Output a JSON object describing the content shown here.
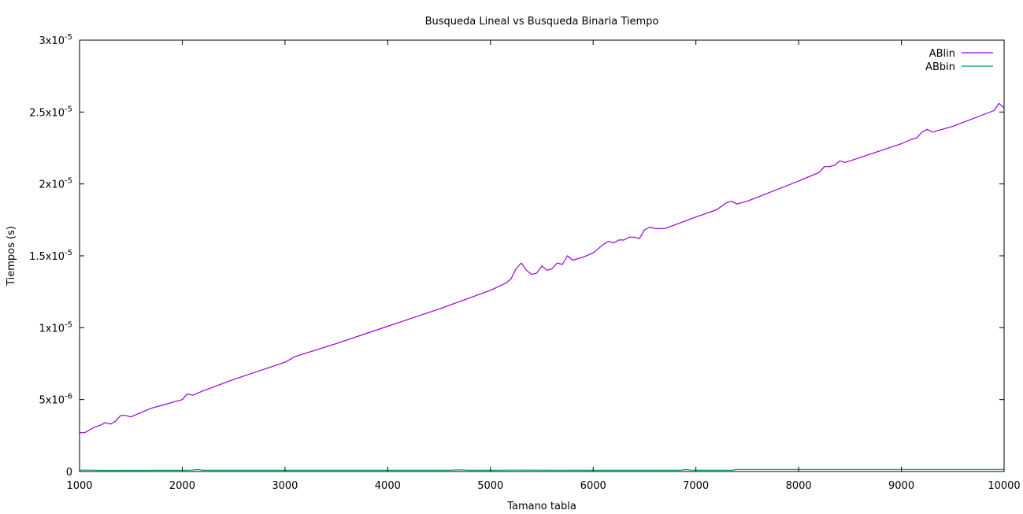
{
  "chart_data": {
    "type": "line",
    "title": "Busqueda Lineal vs Busqueda Binaria Tiempo",
    "xlabel": "Tamano tabla",
    "ylabel": "Tiempos (s)",
    "xlim": [
      1000,
      10000
    ],
    "ylim": [
      0,
      3e-05
    ],
    "grid": false,
    "legend_position": "top-right",
    "x_ticks": [
      {
        "value": 1000,
        "label": "1000"
      },
      {
        "value": 2000,
        "label": "2000"
      },
      {
        "value": 3000,
        "label": "3000"
      },
      {
        "value": 4000,
        "label": "4000"
      },
      {
        "value": 5000,
        "label": "5000"
      },
      {
        "value": 6000,
        "label": "6000"
      },
      {
        "value": 7000,
        "label": "7000"
      },
      {
        "value": 8000,
        "label": "8000"
      },
      {
        "value": 9000,
        "label": "9000"
      },
      {
        "value": 10000,
        "label": "10000"
      }
    ],
    "y_ticks": [
      {
        "value": 0,
        "label": "0",
        "exp": ""
      },
      {
        "value": 5e-06,
        "label": "5x10",
        "exp": "-6"
      },
      {
        "value": 1e-05,
        "label": "1x10",
        "exp": "-5"
      },
      {
        "value": 1.5e-05,
        "label": "1.5x10",
        "exp": "-5"
      },
      {
        "value": 2e-05,
        "label": "2x10",
        "exp": "-5"
      },
      {
        "value": 2.5e-05,
        "label": "2.5x10",
        "exp": "-5"
      },
      {
        "value": 3e-05,
        "label": "3x10",
        "exp": "-5"
      }
    ],
    "series": [
      {
        "name": "ABlin",
        "color": "#9400d3",
        "points": [
          [
            1000,
            2.7e-06
          ],
          [
            1050,
            2.7e-06
          ],
          [
            1100,
            2.9e-06
          ],
          [
            1150,
            3.1e-06
          ],
          [
            1200,
            3.2e-06
          ],
          [
            1250,
            3.4e-06
          ],
          [
            1300,
            3.3e-06
          ],
          [
            1350,
            3.5e-06
          ],
          [
            1400,
            3.9e-06
          ],
          [
            1450,
            3.9e-06
          ],
          [
            1500,
            3.8e-06
          ],
          [
            1600,
            4.1e-06
          ],
          [
            1700,
            4.4e-06
          ],
          [
            1800,
            4.6e-06
          ],
          [
            1900,
            4.8e-06
          ],
          [
            2000,
            5e-06
          ],
          [
            2050,
            5.4e-06
          ],
          [
            2100,
            5.3e-06
          ],
          [
            2200,
            5.6e-06
          ],
          [
            2500,
            6.4e-06
          ],
          [
            3000,
            7.6e-06
          ],
          [
            3100,
            8e-06
          ],
          [
            3500,
            8.9e-06
          ],
          [
            4000,
            1.01e-05
          ],
          [
            4500,
            1.13e-05
          ],
          [
            5000,
            1.26e-05
          ],
          [
            5150,
            1.31e-05
          ],
          [
            5200,
            1.34e-05
          ],
          [
            5250,
            1.41e-05
          ],
          [
            5300,
            1.45e-05
          ],
          [
            5350,
            1.4e-05
          ],
          [
            5400,
            1.37e-05
          ],
          [
            5450,
            1.38e-05
          ],
          [
            5500,
            1.43e-05
          ],
          [
            5550,
            1.4e-05
          ],
          [
            5600,
            1.41e-05
          ],
          [
            5650,
            1.45e-05
          ],
          [
            5700,
            1.44e-05
          ],
          [
            5750,
            1.5e-05
          ],
          [
            5800,
            1.47e-05
          ],
          [
            5900,
            1.49e-05
          ],
          [
            6000,
            1.52e-05
          ],
          [
            6050,
            1.55e-05
          ],
          [
            6100,
            1.58e-05
          ],
          [
            6150,
            1.6e-05
          ],
          [
            6200,
            1.59e-05
          ],
          [
            6250,
            1.61e-05
          ],
          [
            6300,
            1.61e-05
          ],
          [
            6350,
            1.63e-05
          ],
          [
            6400,
            1.63e-05
          ],
          [
            6450,
            1.62e-05
          ],
          [
            6500,
            1.68e-05
          ],
          [
            6550,
            1.7e-05
          ],
          [
            6600,
            1.69e-05
          ],
          [
            6700,
            1.69e-05
          ],
          [
            7000,
            1.77e-05
          ],
          [
            7200,
            1.82e-05
          ],
          [
            7300,
            1.87e-05
          ],
          [
            7350,
            1.88e-05
          ],
          [
            7400,
            1.86e-05
          ],
          [
            7500,
            1.88e-05
          ],
          [
            8000,
            2.02e-05
          ],
          [
            8200,
            2.08e-05
          ],
          [
            8250,
            2.12e-05
          ],
          [
            8300,
            2.12e-05
          ],
          [
            8350,
            2.13e-05
          ],
          [
            8400,
            2.16e-05
          ],
          [
            8450,
            2.15e-05
          ],
          [
            8500,
            2.16e-05
          ],
          [
            9000,
            2.28e-05
          ],
          [
            9100,
            2.31e-05
          ],
          [
            9150,
            2.32e-05
          ],
          [
            9200,
            2.36e-05
          ],
          [
            9250,
            2.38e-05
          ],
          [
            9300,
            2.36e-05
          ],
          [
            9350,
            2.37e-05
          ],
          [
            9500,
            2.4e-05
          ],
          [
            9900,
            2.51e-05
          ],
          [
            9950,
            2.56e-05
          ],
          [
            10000,
            2.53e-05
          ]
        ]
      },
      {
        "name": "ABbin",
        "color": "#009e73",
        "points": [
          [
            1000,
            1e-07
          ],
          [
            1100,
            1e-07
          ],
          [
            1200,
            8e-08
          ],
          [
            2000,
            9e-08
          ],
          [
            2100,
            1e-07
          ],
          [
            2150,
            1.5e-07
          ],
          [
            2200,
            9e-08
          ],
          [
            3000,
            9e-08
          ],
          [
            4000,
            9e-08
          ],
          [
            4600,
            9e-08
          ],
          [
            4700,
            1.2e-07
          ],
          [
            4800,
            9e-08
          ],
          [
            5000,
            9e-08
          ],
          [
            5200,
            1e-07
          ],
          [
            6000,
            9e-08
          ],
          [
            6850,
            9e-08
          ],
          [
            6900,
            1.4e-07
          ],
          [
            6950,
            1e-07
          ],
          [
            7000,
            9e-08
          ],
          [
            7350,
            9e-08
          ],
          [
            7400,
            1.5e-07
          ],
          [
            8000,
            1.5e-07
          ],
          [
            8500,
            1.5e-07
          ],
          [
            9000,
            1.5e-07
          ],
          [
            10000,
            1.5e-07
          ]
        ]
      }
    ]
  }
}
